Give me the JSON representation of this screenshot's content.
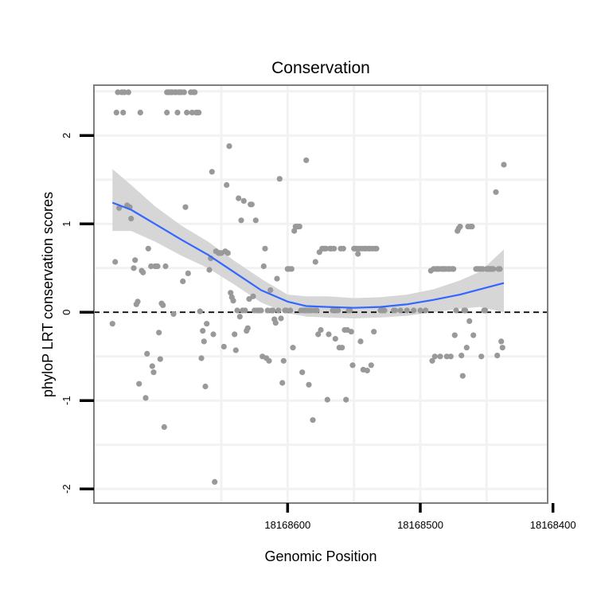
{
  "chart_data": {
    "type": "scatter",
    "title": "Conservation",
    "xlabel": "Genomic Position",
    "ylabel": "phyloP LRT conservation scores",
    "x_reversed": true,
    "xlim": [
      18168746,
      18168404
    ],
    "ylim": [
      -2.16,
      2.57
    ],
    "x_ticks": [
      18168600,
      18168500,
      18168400
    ],
    "y_ticks": [
      -2,
      -1,
      0,
      1,
      2
    ],
    "grid": true,
    "reference_line": {
      "y": 0,
      "style": "dashed",
      "color": "#000000"
    },
    "colors": {
      "points": "#999999",
      "smooth": "#3366ff",
      "ribbon": "#d4d4d4",
      "grid": "#f2f2f2",
      "frame": "#7f7f7f"
    },
    "series": [
      {
        "kind": "points",
        "points": [
          [
            18168732,
            -0.13
          ],
          [
            18168730,
            0.57
          ],
          [
            18168729,
            2.26
          ],
          [
            18168728,
            2.49
          ],
          [
            18168727,
            1.18
          ],
          [
            18168725,
            2.49
          ],
          [
            18168724,
            2.26
          ],
          [
            18168723,
            2.49
          ],
          [
            18168721,
            1.21
          ],
          [
            18168720,
            2.49
          ],
          [
            18168719,
            1.19
          ],
          [
            18168718,
            1.06
          ],
          [
            18168716,
            0.5
          ],
          [
            18168715,
            0.59
          ],
          [
            18168714,
            0.09
          ],
          [
            18168713,
            0.12
          ],
          [
            18168712,
            -0.81
          ],
          [
            18168711,
            2.26
          ],
          [
            18168710,
            0.47
          ],
          [
            18168709,
            0.45
          ],
          [
            18168707,
            -0.97
          ],
          [
            18168706,
            -0.47
          ],
          [
            18168705,
            0.72
          ],
          [
            18168703,
            0.52
          ],
          [
            18168702,
            -0.61
          ],
          [
            18168701,
            -0.68
          ],
          [
            18168700,
            0.52
          ],
          [
            18168699,
            0.52
          ],
          [
            18168698,
            0.52
          ],
          [
            18168697,
            -0.23
          ],
          [
            18168696,
            -0.53
          ],
          [
            18168695,
            0.1
          ],
          [
            18168694,
            0.08
          ],
          [
            18168693,
            -1.3
          ],
          [
            18168692,
            0.52
          ],
          [
            18168691,
            2.49
          ],
          [
            18168691,
            2.26
          ],
          [
            18168690,
            2.49
          ],
          [
            18168689,
            2.49
          ],
          [
            18168688,
            2.49
          ],
          [
            18168687,
            2.49
          ],
          [
            18168686,
            -0.02
          ],
          [
            18168685,
            2.49
          ],
          [
            18168684,
            2.49
          ],
          [
            18168683,
            2.26
          ],
          [
            18168682,
            2.49
          ],
          [
            18168681,
            2.49
          ],
          [
            18168680,
            2.49
          ],
          [
            18168679,
            0.35
          ],
          [
            18168678,
            2.49
          ],
          [
            18168677,
            1.19
          ],
          [
            18168676,
            2.26
          ],
          [
            18168675,
            0.44
          ],
          [
            18168673,
            2.49
          ],
          [
            18168672,
            2.26
          ],
          [
            18168671,
            2.49
          ],
          [
            18168670,
            2.49
          ],
          [
            18168669,
            2.26
          ],
          [
            18168668,
            2.26
          ],
          [
            18168667,
            2.26
          ],
          [
            18168666,
            0.01
          ],
          [
            18168665,
            -0.52
          ],
          [
            18168664,
            -0.21
          ],
          [
            18168663,
            -0.33
          ],
          [
            18168662,
            -0.84
          ],
          [
            18168661,
            -0.13
          ],
          [
            18168659,
            0.48
          ],
          [
            18168658,
            0.61
          ],
          [
            18168657,
            1.59
          ],
          [
            18168656,
            -0.25
          ],
          [
            18168655,
            -1.92
          ],
          [
            18168654,
            0.69
          ],
          [
            18168652,
            0.67
          ],
          [
            18168651,
            0.67
          ],
          [
            18168650,
            0.67
          ],
          [
            18168648,
            -0.39
          ],
          [
            18168647,
            0.69
          ],
          [
            18168646,
            1.44
          ],
          [
            18168645,
            0.67
          ],
          [
            18168644,
            1.88
          ],
          [
            18168643,
            0.22
          ],
          [
            18168642,
            0.17
          ],
          [
            18168641,
            0.13
          ],
          [
            18168640,
            -0.25
          ],
          [
            18168639,
            -0.43
          ],
          [
            18168638,
            0.02
          ],
          [
            18168637,
            1.29
          ],
          [
            18168636,
            -0.05
          ],
          [
            18168635,
            1.04
          ],
          [
            18168634,
            0.02
          ],
          [
            18168633,
            1.26
          ],
          [
            18168632,
            0.02
          ],
          [
            18168631,
            -0.21
          ],
          [
            18168630,
            -0.18
          ],
          [
            18168629,
            0.15
          ],
          [
            18168628,
            1.22
          ],
          [
            18168627,
            1.22
          ],
          [
            18168626,
            0.18
          ],
          [
            18168625,
            0.02
          ],
          [
            18168624,
            1.04
          ],
          [
            18168623,
            0.02
          ],
          [
            18168622,
            0.02
          ],
          [
            18168621,
            0.02
          ],
          [
            18168620,
            0.02
          ],
          [
            18168619,
            -0.5
          ],
          [
            18168618,
            0.52
          ],
          [
            18168617,
            0.72
          ],
          [
            18168616,
            -0.52
          ],
          [
            18168615,
            0.02
          ],
          [
            18168614,
            -0.55
          ],
          [
            18168613,
            0.25
          ],
          [
            18168612,
            0.02
          ],
          [
            18168611,
            0.02
          ],
          [
            18168610,
            -0.08
          ],
          [
            18168609,
            -0.12
          ],
          [
            18168608,
            0.38
          ],
          [
            18168607,
            0.02
          ],
          [
            18168606,
            1.51
          ],
          [
            18168605,
            -0.07
          ],
          [
            18168604,
            -0.8
          ],
          [
            18168603,
            -0.55
          ],
          [
            18168602,
            0.02
          ],
          [
            18168601,
            0.02
          ],
          [
            18168600,
            0.49
          ],
          [
            18168599,
            0.49
          ],
          [
            18168598,
            0.02
          ],
          [
            18168597,
            0.49
          ],
          [
            18168596,
            -0.4
          ],
          [
            18168595,
            0.92
          ],
          [
            18168594,
            0.97
          ],
          [
            18168593,
            0.97
          ],
          [
            18168592,
            0.97
          ],
          [
            18168591,
            0.97
          ],
          [
            18168590,
            0.02
          ],
          [
            18168589,
            -0.68
          ],
          [
            18168588,
            0.02
          ],
          [
            18168587,
            0.02
          ],
          [
            18168586,
            1.72
          ],
          [
            18168585,
            0.02
          ],
          [
            18168584,
            -0.82
          ],
          [
            18168583,
            0.02
          ],
          [
            18168582,
            0.02
          ],
          [
            18168581,
            -1.22
          ],
          [
            18168580,
            0.02
          ],
          [
            18168579,
            0.57
          ],
          [
            18168578,
            0.02
          ],
          [
            18168577,
            -0.25
          ],
          [
            18168576,
            0.68
          ],
          [
            18168575,
            -0.2
          ],
          [
            18168574,
            0.72
          ],
          [
            18168573,
            0.72
          ],
          [
            18168572,
            0.72
          ],
          [
            18168571,
            0.72
          ],
          [
            18168570,
            -0.99
          ],
          [
            18168569,
            -0.25
          ],
          [
            18168568,
            0.72
          ],
          [
            18168567,
            0.72
          ],
          [
            18168566,
            0.02
          ],
          [
            18168565,
            0.72
          ],
          [
            18168564,
            -0.3
          ],
          [
            18168563,
            0.02
          ],
          [
            18168562,
            0.02
          ],
          [
            18168561,
            -0.4
          ],
          [
            18168560,
            0.72
          ],
          [
            18168559,
            -0.4
          ],
          [
            18168558,
            0.72
          ],
          [
            18168557,
            -0.2
          ],
          [
            18168556,
            -0.99
          ],
          [
            18168555,
            -0.2
          ],
          [
            18168554,
            0.02
          ],
          [
            18168553,
            0.02
          ],
          [
            18168552,
            -0.22
          ],
          [
            18168551,
            -0.6
          ],
          [
            18168550,
            0.72
          ],
          [
            18168549,
            0.72
          ],
          [
            18168548,
            0.72
          ],
          [
            18168547,
            0.66
          ],
          [
            18168546,
            0.72
          ],
          [
            18168545,
            -0.33
          ],
          [
            18168544,
            0.72
          ],
          [
            18168543,
            -0.65
          ],
          [
            18168542,
            0.72
          ],
          [
            18168541,
            0.72
          ],
          [
            18168540,
            -0.66
          ],
          [
            18168539,
            0.72
          ],
          [
            18168538,
            0.72
          ],
          [
            18168537,
            -0.6
          ],
          [
            18168536,
            0.72
          ],
          [
            18168535,
            -0.22
          ],
          [
            18168534,
            0.72
          ],
          [
            18168533,
            0.72
          ],
          [
            18168530,
            0.02
          ],
          [
            18168529,
            0.02
          ],
          [
            18168528,
            0.02
          ],
          [
            18168527,
            0.02
          ],
          [
            18168520,
            0.02
          ],
          [
            18168519,
            0.02
          ],
          [
            18168515,
            0.02
          ],
          [
            18168510,
            0.02
          ],
          [
            18168505,
            0.02
          ],
          [
            18168500,
            0.02
          ],
          [
            18168496,
            0.02
          ],
          [
            18168492,
            0.47
          ],
          [
            18168491,
            -0.55
          ],
          [
            18168490,
            0.49
          ],
          [
            18168489,
            -0.5
          ],
          [
            18168488,
            0.49
          ],
          [
            18168487,
            0.49
          ],
          [
            18168486,
            0.49
          ],
          [
            18168485,
            -0.5
          ],
          [
            18168484,
            0.49
          ],
          [
            18168483,
            0.49
          ],
          [
            18168482,
            0.49
          ],
          [
            18168481,
            0.49
          ],
          [
            18168480,
            -0.5
          ],
          [
            18168479,
            0.49
          ],
          [
            18168478,
            0.49
          ],
          [
            18168477,
            -0.5
          ],
          [
            18168476,
            0.49
          ],
          [
            18168475,
            0.49
          ],
          [
            18168474,
            -0.26
          ],
          [
            18168473,
            0.02
          ],
          [
            18168472,
            0.92
          ],
          [
            18168471,
            0.95
          ],
          [
            18168470,
            0.97
          ],
          [
            18168469,
            -0.49
          ],
          [
            18168468,
            -0.72
          ],
          [
            18168467,
            0.02
          ],
          [
            18168466,
            0.02
          ],
          [
            18168465,
            -0.4
          ],
          [
            18168464,
            0.97
          ],
          [
            18168463,
            -0.1
          ],
          [
            18168462,
            0.97
          ],
          [
            18168461,
            0.97
          ],
          [
            18168460,
            -0.26
          ],
          [
            18168458,
            0.49
          ],
          [
            18168457,
            0.49
          ],
          [
            18168456,
            0.49
          ],
          [
            18168455,
            0.49
          ],
          [
            18168454,
            -0.5
          ],
          [
            18168453,
            0.49
          ],
          [
            18168452,
            0.02
          ],
          [
            18168451,
            0.02
          ],
          [
            18168450,
            0.49
          ],
          [
            18168449,
            0.49
          ],
          [
            18168448,
            0.49
          ],
          [
            18168447,
            0.49
          ],
          [
            18168446,
            0.49
          ],
          [
            18168445,
            0.49
          ],
          [
            18168443,
            1.36
          ],
          [
            18168442,
            -0.49
          ],
          [
            18168441,
            0.49
          ],
          [
            18168440,
            0.49
          ],
          [
            18168439,
            -0.33
          ],
          [
            18168438,
            -0.4
          ],
          [
            18168437,
            1.67
          ]
        ]
      },
      {
        "kind": "smooth",
        "x": [
          18168732,
          18168718,
          18168700,
          18168680,
          18168660,
          18168640,
          18168620,
          18168600,
          18168586,
          18168570,
          18168550,
          18168530,
          18168510,
          18168490,
          18168470,
          18168455,
          18168437
        ],
        "y": [
          1.24,
          1.16,
          1.0,
          0.82,
          0.65,
          0.45,
          0.25,
          0.12,
          0.07,
          0.06,
          0.05,
          0.06,
          0.09,
          0.14,
          0.2,
          0.26,
          0.33
        ],
        "lower": [
          0.92,
          0.92,
          0.8,
          0.64,
          0.5,
          0.31,
          0.11,
          -0.01,
          -0.05,
          -0.06,
          -0.07,
          -0.06,
          -0.04,
          0.0,
          0.04,
          0.06,
          0.0
        ],
        "upper": [
          1.62,
          1.44,
          1.2,
          0.98,
          0.8,
          0.58,
          0.38,
          0.2,
          0.18,
          0.18,
          0.16,
          0.17,
          0.2,
          0.26,
          0.36,
          0.46,
          0.71
        ]
      }
    ]
  }
}
